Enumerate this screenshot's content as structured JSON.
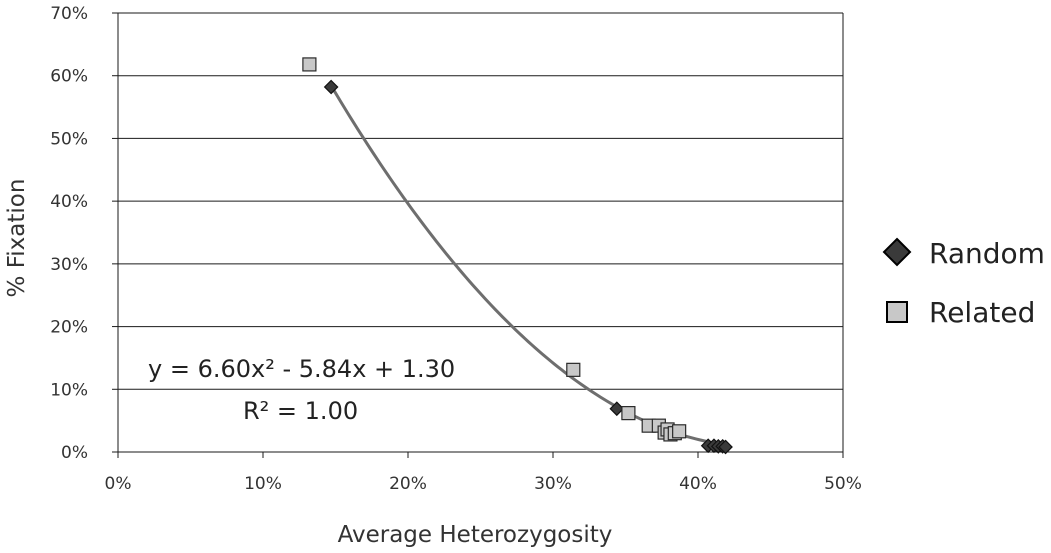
{
  "chart_data": {
    "type": "scatter",
    "xlabel": "Average Heterozygosity",
    "ylabel": "% Fixation",
    "xlim": [
      0,
      0.5
    ],
    "ylim": [
      0,
      0.7
    ],
    "x_ticks": [
      0,
      0.1,
      0.2,
      0.3,
      0.4,
      0.5
    ],
    "x_tick_labels": [
      "0%",
      "10%",
      "20%",
      "30%",
      "40%",
      "50%"
    ],
    "y_ticks": [
      0,
      0.1,
      0.2,
      0.3,
      0.4,
      0.5,
      0.6,
      0.7
    ],
    "y_tick_labels": [
      "0%",
      "10%",
      "20%",
      "30%",
      "40%",
      "50%",
      "60%",
      "70%"
    ],
    "grid": "horizontal",
    "legend_position": "right",
    "series": [
      {
        "name": "Random",
        "marker": "diamond",
        "color": "#3a3a3a",
        "points": [
          {
            "x": 0.147,
            "y": 0.582
          },
          {
            "x": 0.344,
            "y": 0.069
          },
          {
            "x": 0.407,
            "y": 0.01
          },
          {
            "x": 0.411,
            "y": 0.01
          },
          {
            "x": 0.414,
            "y": 0.009
          },
          {
            "x": 0.417,
            "y": 0.009
          },
          {
            "x": 0.419,
            "y": 0.008
          }
        ]
      },
      {
        "name": "Related",
        "marker": "square",
        "color": "#c8c8c8",
        "points": [
          {
            "x": 0.132,
            "y": 0.618
          },
          {
            "x": 0.314,
            "y": 0.131
          },
          {
            "x": 0.352,
            "y": 0.062
          },
          {
            "x": 0.366,
            "y": 0.042
          },
          {
            "x": 0.373,
            "y": 0.042
          },
          {
            "x": 0.377,
            "y": 0.031
          },
          {
            "x": 0.379,
            "y": 0.036
          },
          {
            "x": 0.381,
            "y": 0.028
          },
          {
            "x": 0.384,
            "y": 0.03
          },
          {
            "x": 0.387,
            "y": 0.033
          }
        ]
      }
    ],
    "trendline": {
      "type": "polynomial",
      "coefficients": [
        6.6,
        -5.84,
        1.3
      ],
      "x_range": [
        0.147,
        0.419
      ],
      "color": "#6e6e6e",
      "equation_text": "y = 6.60x² - 5.84x + 1.30",
      "r2_text": "R² = 1.00"
    }
  }
}
